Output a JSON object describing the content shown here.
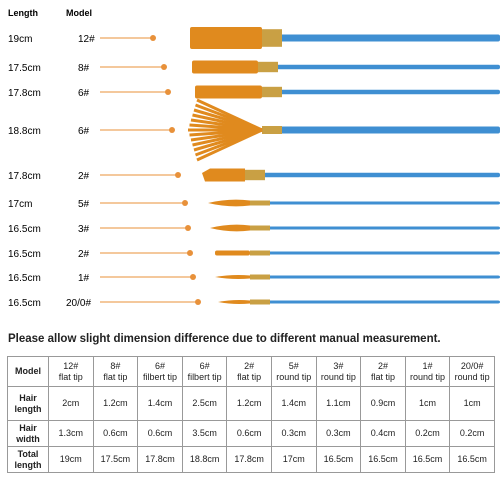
{
  "header": {
    "length": "Length",
    "model": "Model"
  },
  "brushes": [
    {
      "length": "19cm",
      "model": "12#"
    },
    {
      "length": "17.5cm",
      "model": "8#"
    },
    {
      "length": "17.8cm",
      "model": "6#"
    },
    {
      "length": "18.8cm",
      "model": "6#"
    },
    {
      "length": "17.8cm",
      "model": "2#"
    },
    {
      "length": "17cm",
      "model": "5#"
    },
    {
      "length": "16.5cm",
      "model": "3#"
    },
    {
      "length": "16.5cm",
      "model": "2#"
    },
    {
      "length": "16.5cm",
      "model": "1#"
    },
    {
      "length": "16.5cm",
      "model": "20/0#"
    }
  ],
  "note": "Please allow slight dimension difference due to different manual measurement.",
  "table": {
    "model_label": "Model",
    "columns": [
      {
        "model": "12#",
        "tip": "flat tip"
      },
      {
        "model": "8#",
        "tip": "flat tip"
      },
      {
        "model": "6#",
        "tip": "filbert tip"
      },
      {
        "model": "6#",
        "tip": "filbert tip"
      },
      {
        "model": "2#",
        "tip": "flat tip"
      },
      {
        "model": "5#",
        "tip": "round tip"
      },
      {
        "model": "3#",
        "tip": "round tip"
      },
      {
        "model": "2#",
        "tip": "flat tip"
      },
      {
        "model": "1#",
        "tip": "round tip"
      },
      {
        "model": "20/0#",
        "tip": "round tip"
      }
    ],
    "rows": [
      {
        "label": "Hair length",
        "cells": [
          "2cm",
          "1.2cm",
          "1.4cm",
          "2.5cm",
          "1.2cm",
          "1.4cm",
          "1.1cm",
          "0.9cm",
          "1cm",
          "1cm"
        ]
      },
      {
        "label": "Hair width",
        "cells": [
          "1.3cm",
          "0.6cm",
          "0.6cm",
          "3.5cm",
          "0.6cm",
          "0.3cm",
          "0.3cm",
          "0.4cm",
          "0.2cm",
          "0.2cm"
        ]
      },
      {
        "label": "Total length",
        "cells": [
          "19cm",
          "17.5cm",
          "17.8cm",
          "18.8cm",
          "17.8cm",
          "17cm",
          "16.5cm",
          "16.5cm",
          "16.5cm",
          "16.5cm"
        ]
      }
    ]
  }
}
